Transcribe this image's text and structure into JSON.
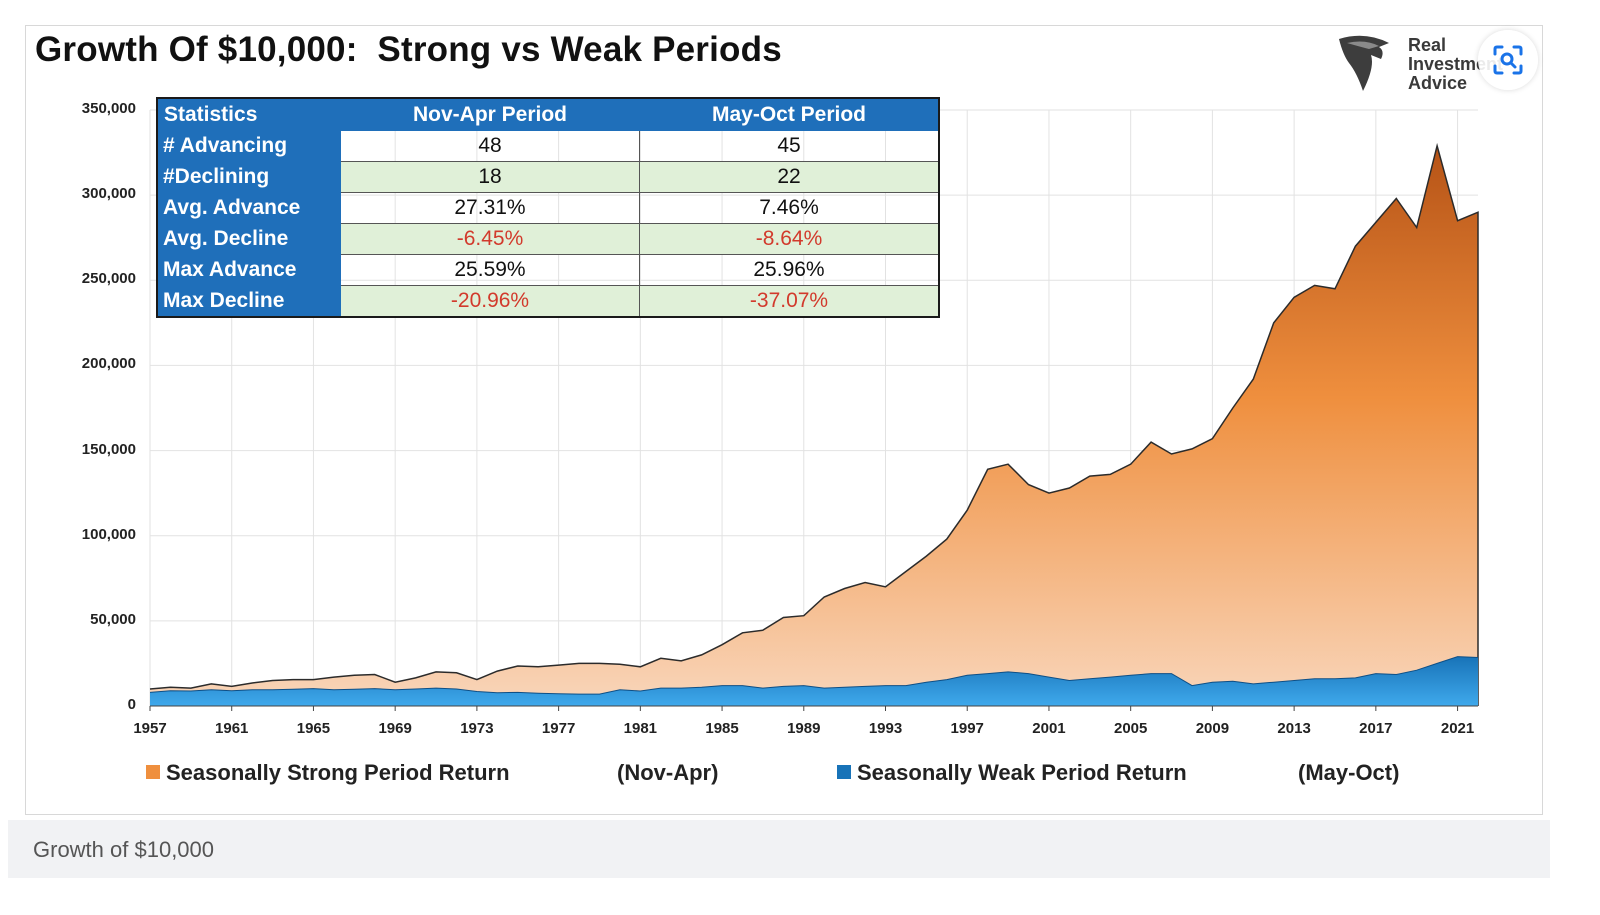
{
  "page": {
    "caption": "Growth of $10,000"
  },
  "logo": {
    "lines": [
      "Real",
      "Investment",
      "Advice"
    ]
  },
  "colors": {
    "strong_top": "#b65316",
    "strong_mid": "#ef8f3e",
    "strong_bottom": "#f9d6bb",
    "weak_top": "#1873b8",
    "weak_bottom": "#3fa9ec",
    "header": "#1f6fba",
    "negative": "#d23a2c"
  },
  "chart_data": {
    "type": "area",
    "title": "Growth Of $10,000:  Strong vs Weak Periods",
    "xlabel": "",
    "ylabel": "",
    "ylim": [
      0,
      350000
    ],
    "yticks": [
      "0",
      "50,000",
      "100,000",
      "150,000",
      "200,000",
      "250,000",
      "300,000",
      "350,000"
    ],
    "ytick_values": [
      0,
      50000,
      100000,
      150000,
      200000,
      250000,
      300000,
      350000
    ],
    "xlim": [
      1957,
      2022
    ],
    "xticks": [
      1957,
      1961,
      1965,
      1969,
      1973,
      1977,
      1981,
      1985,
      1989,
      1993,
      1997,
      2001,
      2005,
      2009,
      2013,
      2017,
      2021
    ],
    "grid": true,
    "legend_position": "bottom",
    "series": [
      {
        "name": "Seasonally Strong Period Return",
        "note": "(Nov-Apr)",
        "x": [
          1957,
          1958,
          1959,
          1960,
          1961,
          1962,
          1963,
          1964,
          1965,
          1966,
          1967,
          1968,
          1969,
          1970,
          1971,
          1972,
          1973,
          1974,
          1975,
          1976,
          1977,
          1978,
          1979,
          1980,
          1981,
          1982,
          1983,
          1984,
          1985,
          1986,
          1987,
          1988,
          1989,
          1990,
          1991,
          1992,
          1993,
          1994,
          1995,
          1996,
          1997,
          1998,
          1999,
          2000,
          2001,
          2002,
          2003,
          2004,
          2005,
          2006,
          2007,
          2008,
          2009,
          2010,
          2011,
          2012,
          2013,
          2014,
          2015,
          2016,
          2017,
          2018,
          2019,
          2020,
          2021,
          2022
        ],
        "values": [
          10000,
          11000,
          10500,
          13000,
          11500,
          13500,
          15000,
          15500,
          15500,
          17000,
          18000,
          18500,
          14000,
          16500,
          20000,
          19500,
          15500,
          20500,
          23500,
          23000,
          24000,
          25000,
          25000,
          24500,
          23000,
          28000,
          26500,
          30000,
          36000,
          43000,
          44500,
          52000,
          53000,
          64000,
          69000,
          72500,
          70000,
          79000,
          88000,
          98000,
          115000,
          139000,
          142000,
          130000,
          125000,
          128000,
          135000,
          136000,
          142000,
          155000,
          148000,
          151000,
          157000,
          175000,
          192000,
          225000,
          240000,
          247000,
          245000,
          270000,
          284000,
          298000,
          281000,
          329000,
          285000,
          290000
        ]
      },
      {
        "name": "Seasonally Weak Period Return",
        "note": "(May-Oct)",
        "x": [
          1957,
          1958,
          1959,
          1960,
          1961,
          1962,
          1963,
          1964,
          1965,
          1966,
          1967,
          1968,
          1969,
          1970,
          1971,
          1972,
          1973,
          1974,
          1975,
          1976,
          1977,
          1978,
          1979,
          1980,
          1981,
          1982,
          1983,
          1984,
          1985,
          1986,
          1987,
          1988,
          1989,
          1990,
          1991,
          1992,
          1993,
          1994,
          1995,
          1996,
          1997,
          1998,
          1999,
          2000,
          2001,
          2002,
          2003,
          2004,
          2005,
          2006,
          2007,
          2008,
          2009,
          2010,
          2011,
          2012,
          2013,
          2014,
          2015,
          2016,
          2017,
          2018,
          2019,
          2020,
          2021,
          2022
        ],
        "values": [
          8000,
          9000,
          8800,
          9500,
          9000,
          9500,
          9500,
          9800,
          10200,
          9500,
          9800,
          10200,
          9500,
          10000,
          10500,
          10000,
          8500,
          7800,
          8000,
          7500,
          7200,
          7000,
          7000,
          9500,
          8800,
          10500,
          10500,
          11000,
          12000,
          12000,
          10500,
          11500,
          12000,
          10500,
          11000,
          11500,
          12000,
          12000,
          14000,
          15500,
          18000,
          19000,
          20000,
          19000,
          17000,
          15000,
          16000,
          17000,
          18000,
          19000,
          19000,
          12000,
          14000,
          14500,
          13000,
          14000,
          15000,
          16000,
          16000,
          16500,
          19000,
          18500,
          21000,
          25000,
          29000,
          28500
        ]
      }
    ],
    "table": {
      "headers": [
        "Statistics",
        "Nov-Apr Period",
        "May-Oct Period"
      ],
      "rows": [
        {
          "label": "# Advancing",
          "nov_apr": "48",
          "may_oct": "45",
          "negative": false
        },
        {
          "label": "#Declining",
          "nov_apr": "18",
          "may_oct": "22",
          "negative": false
        },
        {
          "label": "Avg. Advance",
          "nov_apr": "27.31%",
          "may_oct": "7.46%",
          "negative": false
        },
        {
          "label": "Avg. Decline",
          "nov_apr": "-6.45%",
          "may_oct": "-8.64%",
          "negative": true
        },
        {
          "label": "Max Advance",
          "nov_apr": "25.59%",
          "may_oct": "25.96%",
          "negative": false
        },
        {
          "label": "Max Decline",
          "nov_apr": "-20.96%",
          "may_oct": "-37.07%",
          "negative": true
        }
      ]
    }
  }
}
